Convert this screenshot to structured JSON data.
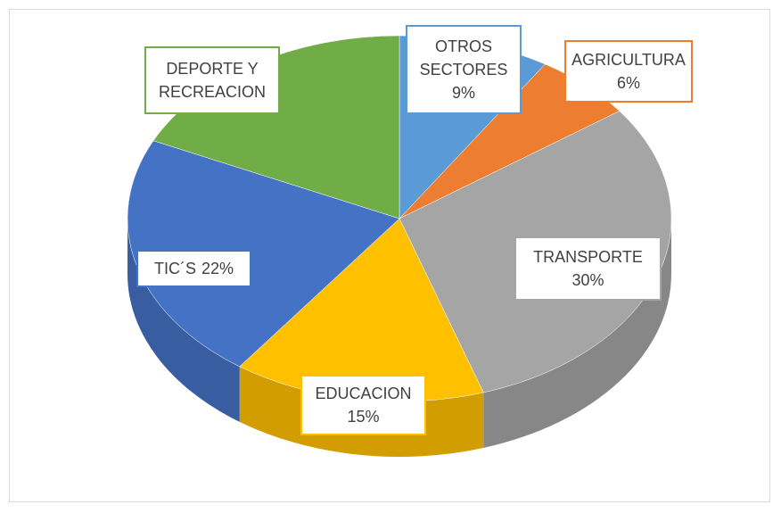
{
  "chart_data": {
    "type": "pie",
    "categories": [
      "OTROS SECTORES",
      "AGRICULTURA",
      "TRANSPORTE",
      "EDUCACION",
      "TIC´S",
      "DEPORTE Y RECREACION"
    ],
    "values": [
      9,
      6,
      30,
      15,
      22,
      18
    ],
    "value_labels": [
      "9%",
      "6%",
      "30%",
      "15%",
      "22%",
      null
    ],
    "colors": [
      "#5b9bd5",
      "#ed7d31",
      "#a5a5a5",
      "#ffc000",
      "#4472c4",
      "#70ad47"
    ]
  }
}
